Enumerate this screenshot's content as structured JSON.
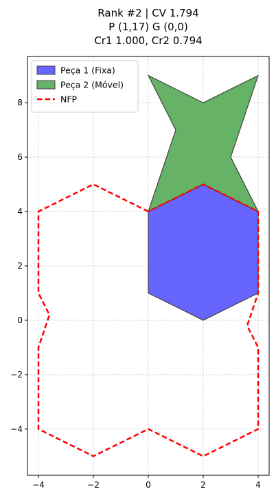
{
  "chart_data": {
    "type": "polygon-plot",
    "title": [
      "Rank #2 | CV 1.794",
      "P (1,17) G (0,0)",
      "Cr1 1.000, Cr2 0.794"
    ],
    "xlim": [
      -4.4,
      4.4
    ],
    "ylim": [
      -5.7,
      9.7
    ],
    "xticks": [
      -4,
      -2,
      0,
      2,
      4
    ],
    "yticks": [
      -4,
      -2,
      0,
      2,
      4,
      6,
      8
    ],
    "grid": true,
    "legend_position": "upper left",
    "series": [
      {
        "name": "Peça 1 (Fixa)",
        "kind": "filled-polygon",
        "fill": "#6666ff",
        "edge": "#404040",
        "points": [
          [
            0,
            1
          ],
          [
            2,
            0
          ],
          [
            4,
            1
          ],
          [
            4,
            4
          ],
          [
            2,
            5
          ],
          [
            0,
            4
          ]
        ]
      },
      {
        "name": "Peça 2 (Móvel)",
        "kind": "filled-polygon",
        "fill": "#66b266",
        "edge": "#404040",
        "points": [
          [
            0,
            4
          ],
          [
            1,
            7
          ],
          [
            0,
            9
          ],
          [
            2,
            8
          ],
          [
            4,
            9
          ],
          [
            3,
            6
          ],
          [
            4,
            4
          ],
          [
            2,
            5
          ]
        ]
      },
      {
        "name": "NFP",
        "kind": "dashed-line",
        "color": "#ff0000",
        "points": [
          [
            0,
            4
          ],
          [
            -2,
            5
          ],
          [
            -4,
            4
          ],
          [
            -4,
            1
          ],
          [
            -3.6,
            0.2
          ],
          [
            -4,
            -1
          ],
          [
            -4,
            -4
          ],
          [
            -2,
            -5
          ],
          [
            0,
            -4
          ],
          [
            2,
            -5
          ],
          [
            4,
            -4
          ],
          [
            4,
            -1
          ],
          [
            3.6,
            -0.2
          ],
          [
            4,
            1
          ],
          [
            4,
            4
          ],
          [
            2,
            5
          ],
          [
            0,
            4
          ]
        ]
      }
    ]
  }
}
